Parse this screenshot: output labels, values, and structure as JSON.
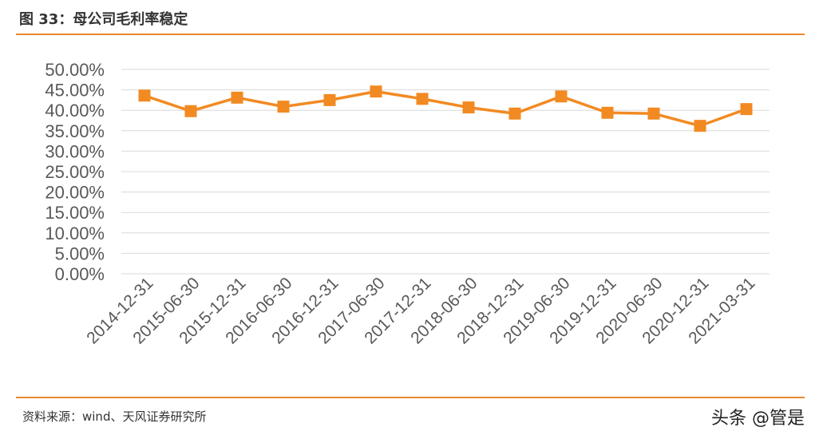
{
  "header": {
    "title": "图 33：母公司毛利率稳定"
  },
  "footer": {
    "source": "资料来源：wind、天风证券研究所",
    "watermark": "头条 @管是"
  },
  "colors": {
    "accent": "#E8892D",
    "series": "#F28A22",
    "grid": "#D9D9D9",
    "text": "#595959"
  },
  "chart_data": {
    "type": "line",
    "title": "",
    "xlabel": "",
    "ylabel": "",
    "ylim": [
      0,
      50
    ],
    "y_ticks": [
      "0.00%",
      "5.00%",
      "10.00%",
      "15.00%",
      "20.00%",
      "25.00%",
      "30.00%",
      "35.00%",
      "40.00%",
      "45.00%",
      "50.00%"
    ],
    "grid": true,
    "legend": "none",
    "marker": "square",
    "categories": [
      "2014-12-31",
      "2015-06-30",
      "2015-12-31",
      "2016-06-30",
      "2016-12-31",
      "2017-06-30",
      "2017-12-31",
      "2018-06-30",
      "2018-12-31",
      "2019-06-30",
      "2019-12-31",
      "2020-06-30",
      "2020-12-31",
      "2021-03-31"
    ],
    "series": [
      {
        "name": "",
        "values": [
          43.6,
          39.8,
          43.1,
          40.9,
          42.5,
          44.6,
          42.8,
          40.7,
          39.2,
          43.4,
          39.4,
          39.2,
          36.2,
          40.3
        ]
      }
    ]
  }
}
